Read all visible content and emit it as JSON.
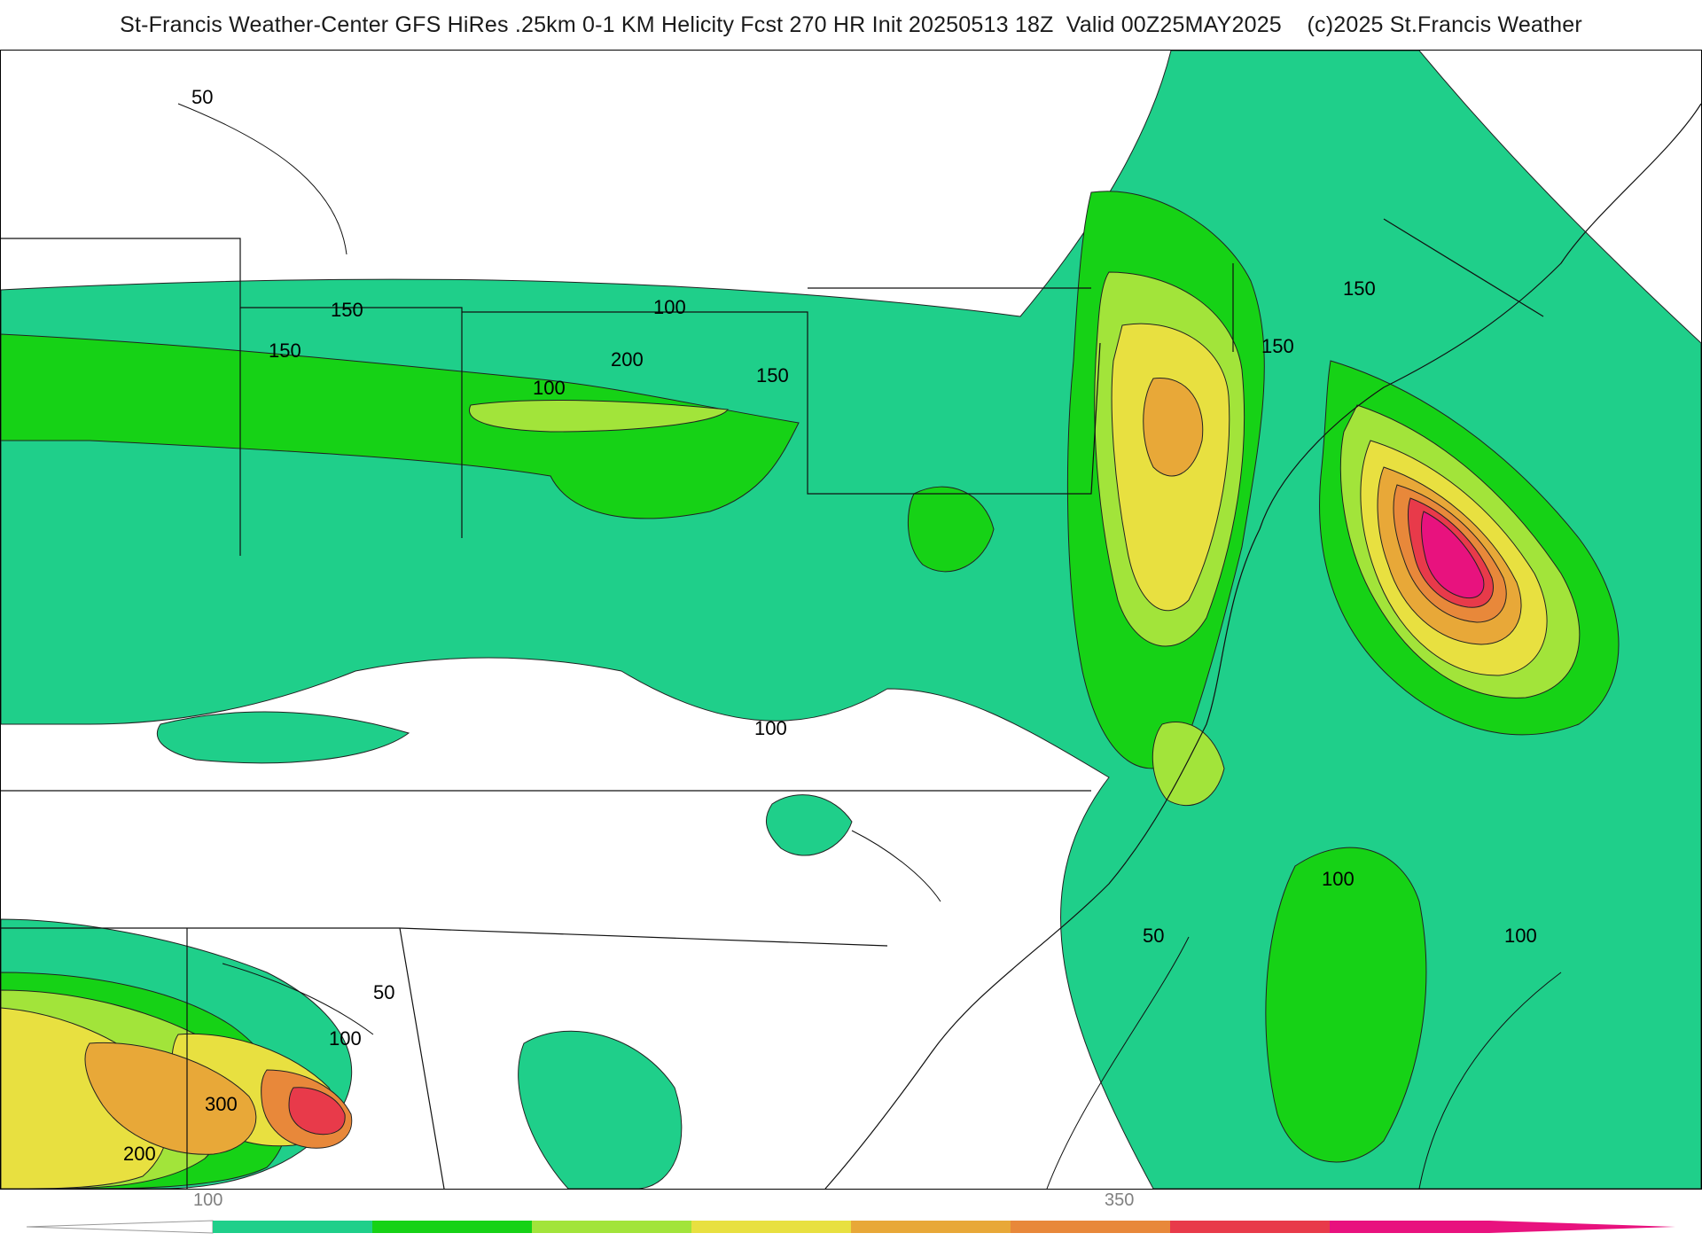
{
  "title": "St-Francis Weather-Center GFS HiRes .25km 0-1 KM Helicity Fcst 270 HR Init 20250513 18Z  Valid 00Z25MAY2025    (c)2025 St.Francis Weather",
  "map": {
    "contour_labels": [
      "50",
      "150",
      "150",
      "100",
      "200",
      "150",
      "100",
      "150",
      "150",
      "100",
      "100",
      "50",
      "100",
      "50",
      "100",
      "300",
      "200"
    ]
  },
  "colorbar": {
    "colors": [
      "#1fcf8a",
      "#16d216",
      "#a2e43a",
      "#e8e040",
      "#e8a838",
      "#e8883a",
      "#e83a4a",
      "#e8127e"
    ],
    "tick_labels": [
      "100",
      "350"
    ]
  }
}
